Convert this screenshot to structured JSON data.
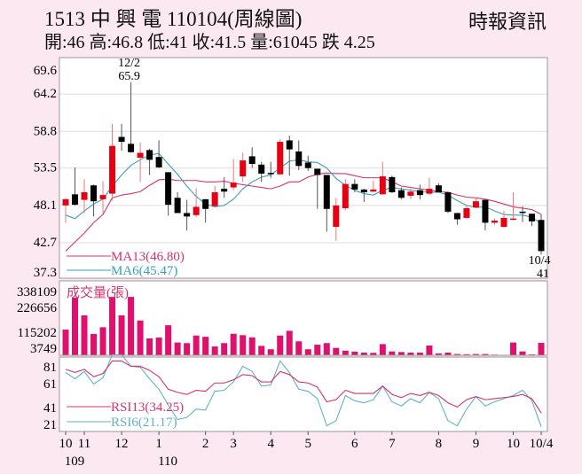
{
  "header": {
    "title": "1513 中 興 電 110104(周線圖)",
    "source": "時報資訊",
    "quote": "開:46 高:46.8 低:41 收:41.5 量:61045 跌 4.25"
  },
  "chart_data": [
    {
      "type": "candlestick",
      "name": "price",
      "yticks": [
        69.6,
        64.2,
        58.8,
        53.5,
        48.1,
        42.7,
        37.3
      ],
      "ylim": [
        37.3,
        69.6
      ],
      "grid": true,
      "up_color": "#e60012",
      "down_color": "#000000",
      "ohlc": [
        [
          48.1,
          49.2,
          45.6,
          49.0
        ],
        [
          49.7,
          53.6,
          48.1,
          48.2
        ],
        [
          48.9,
          51.9,
          47.0,
          50.0
        ],
        [
          51.0,
          51.1,
          46.5,
          48.7
        ],
        [
          49.0,
          51.6,
          47.0,
          49.6
        ],
        [
          49.8,
          59.9,
          48.8,
          56.7
        ],
        [
          58.0,
          59.9,
          56.0,
          57.3
        ],
        [
          57.0,
          65.9,
          55.7,
          55.8
        ],
        [
          55.0,
          57.2,
          51.5,
          55.7
        ],
        [
          56.1,
          56.3,
          52.5,
          54.7
        ],
        [
          55.1,
          57.5,
          53.5,
          53.6
        ],
        [
          52.9,
          52.9,
          46.6,
          48.2
        ],
        [
          49.2,
          50.0,
          47.0,
          47.0
        ],
        [
          47.0,
          48.9,
          44.5,
          46.5
        ],
        [
          46.7,
          50.6,
          46.4,
          47.9
        ],
        [
          49.0,
          49.0,
          45.6,
          47.6
        ],
        [
          48.0,
          50.9,
          48.0,
          50.0
        ],
        [
          50.5,
          52.2,
          49.2,
          50.1
        ],
        [
          50.7,
          54.8,
          50.3,
          51.4
        ],
        [
          52.3,
          55.7,
          51.5,
          54.6
        ],
        [
          55.2,
          56.5,
          53.5,
          54.1
        ],
        [
          54.0,
          54.4,
          51.5,
          52.7
        ],
        [
          52.8,
          54.4,
          52.1,
          52.7
        ],
        [
          52.6,
          57.7,
          52.5,
          57.3
        ],
        [
          57.5,
          58.2,
          52.4,
          56.2
        ],
        [
          55.9,
          57.5,
          53.2,
          53.8
        ],
        [
          54.3,
          55.3,
          53.1,
          53.5
        ],
        [
          53.4,
          53.4,
          47.6,
          52.5
        ],
        [
          52.5,
          52.5,
          44.3,
          47.6
        ],
        [
          45.0,
          49.2,
          43.0,
          48.1
        ],
        [
          47.7,
          51.9,
          47.4,
          51.2
        ],
        [
          51.2,
          51.9,
          50.0,
          50.4
        ],
        [
          50.4,
          50.5,
          48.6,
          50.0
        ],
        [
          50.1,
          51.7,
          50.0,
          50.4
        ],
        [
          49.7,
          54.4,
          49.7,
          52.3
        ],
        [
          52.2,
          52.4,
          49.9,
          50.0
        ],
        [
          50.3,
          50.7,
          49.0,
          49.2
        ],
        [
          49.5,
          50.5,
          49.0,
          50.1
        ],
        [
          50.3,
          51.1,
          49.0,
          49.6
        ],
        [
          49.8,
          52.1,
          49.6,
          50.5
        ],
        [
          51.0,
          51.3,
          50.0,
          50.0
        ],
        [
          50.0,
          50.1,
          47.0,
          47.2
        ],
        [
          47.0,
          47.0,
          45.3,
          46.1
        ],
        [
          46.3,
          48.2,
          46.2,
          47.7
        ],
        [
          47.8,
          49.3,
          47.7,
          48.7
        ],
        [
          48.9,
          49.0,
          44.5,
          45.6
        ],
        [
          45.6,
          46.2,
          45.3,
          45.9
        ],
        [
          45.0,
          47.3,
          44.9,
          46.3
        ],
        [
          46.1,
          50.0,
          46.0,
          46.2
        ],
        [
          47.2,
          48.0,
          45.7,
          47.0
        ],
        [
          46.9,
          46.9,
          45.1,
          45.8
        ],
        [
          46,
          46.8,
          41,
          41.5
        ]
      ],
      "series": [
        {
          "name": "MA13(46.80)",
          "color": "#d6336c",
          "values": [
            41.5,
            42.8,
            44.1,
            45.6,
            46.8,
            49.2,
            49.6,
            49.8,
            50.1,
            51.0,
            51.8,
            51.9,
            51.7,
            51.7,
            51.7,
            51.5,
            51.5,
            51.6,
            51.3,
            51.1,
            50.9,
            50.7,
            50.5,
            50.9,
            51.5,
            51.5,
            52.2,
            52.6,
            52.8,
            52.7,
            52.7,
            52.4,
            52.1,
            52.1,
            52.1,
            51.5,
            50.9,
            50.7,
            50.5,
            50.3,
            50.1,
            50.0,
            49.6,
            49.3,
            49.2,
            49.0,
            48.7,
            48.3,
            47.9,
            47.7,
            47.5,
            46.8
          ]
        },
        {
          "name": "MA6(45.47)",
          "color": "#3a9fb8",
          "values": [
            46.7,
            46.2,
            47.3,
            48.3,
            49.0,
            50.9,
            52.5,
            53.9,
            54.7,
            55.4,
            55.6,
            54.1,
            52.6,
            50.9,
            49.4,
            48.3,
            47.9,
            48.1,
            49.0,
            50.5,
            51.5,
            52.2,
            52.5,
            53.5,
            54.5,
            54.7,
            54.4,
            54.3,
            53.5,
            52.0,
            51.0,
            50.3,
            49.8,
            49.6,
            50.3,
            50.7,
            50.5,
            50.3,
            50.1,
            50.0,
            50.0,
            49.6,
            48.8,
            48.1,
            47.8,
            47.9,
            47.3,
            46.8,
            46.7,
            46.7,
            46.4,
            45.5
          ]
        }
      ],
      "annotations": [
        {
          "date": "12/2",
          "value": "65.9",
          "index": 7
        },
        {
          "date": "10/4",
          "value": "41",
          "index": 51
        }
      ]
    },
    {
      "type": "bar",
      "name": "volume",
      "title": "成交量(張)",
      "color": "#e0106e",
      "yticks": [
        "338109",
        "226656",
        "115202",
        "3749"
      ],
      "ymax": 338109,
      "values": [
        128000,
        289000,
        200000,
        106000,
        140000,
        293000,
        200000,
        293000,
        174000,
        84000,
        88000,
        150000,
        63000,
        60000,
        98000,
        92000,
        43000,
        60000,
        107000,
        100000,
        89000,
        46000,
        29000,
        98000,
        122000,
        69000,
        29000,
        52000,
        60000,
        36000,
        22000,
        17000,
        12000,
        11000,
        55000,
        18000,
        15000,
        12000,
        12000,
        48000,
        8000,
        12000,
        5000,
        4000,
        5000,
        5000,
        2000,
        1000,
        63000,
        18000,
        3000,
        61045
      ]
    },
    {
      "type": "line",
      "name": "rsi",
      "yticks": [
        81,
        61,
        41,
        21
      ],
      "ylim": [
        21,
        81
      ],
      "series": [
        {
          "name": "RSI13(34.25)",
          "color": "#d6336c",
          "values": [
            76,
            73,
            76,
            69,
            72,
            84,
            84,
            79,
            79,
            75,
            69,
            57,
            54,
            52,
            56,
            55,
            63,
            63,
            66,
            71,
            70,
            64,
            64,
            74,
            71,
            64,
            63,
            59,
            45,
            47,
            56,
            53,
            53,
            53,
            60,
            52,
            49,
            53,
            51,
            54,
            51,
            44,
            40,
            47,
            50,
            47,
            48,
            49,
            50,
            52,
            48,
            34.25
          ]
        },
        {
          "name": "RSI6(21.17)",
          "color": "#5fb3c6",
          "values": [
            73,
            67,
            74,
            62,
            68,
            90,
            90,
            79,
            78,
            67,
            57,
            42,
            28,
            30,
            38,
            37,
            55,
            56,
            64,
            79,
            74,
            60,
            61,
            84,
            73,
            57,
            55,
            48,
            22,
            27,
            51,
            46,
            44,
            47,
            60,
            45,
            41,
            48,
            44,
            54,
            48,
            27,
            22,
            38,
            50,
            41,
            45,
            48,
            51,
            56,
            46,
            21.17
          ]
        }
      ]
    }
  ],
  "xaxis": {
    "ticks": [
      {
        "label": "10",
        "sub": "109",
        "index": 0
      },
      {
        "label": "11",
        "index": 2
      },
      {
        "label": "12",
        "index": 6
      },
      {
        "label": "1",
        "sub": "110",
        "index": 10
      },
      {
        "label": "2",
        "index": 15
      },
      {
        "label": "3",
        "index": 18
      },
      {
        "label": "4",
        "index": 22
      },
      {
        "label": "5",
        "index": 26
      },
      {
        "label": "6",
        "index": 31
      },
      {
        "label": "7",
        "index": 35
      },
      {
        "label": "8",
        "index": 40
      },
      {
        "label": "9",
        "index": 44
      },
      {
        "label": "10",
        "index": 48
      },
      {
        "label": "10/4",
        "index": 51
      }
    ]
  }
}
